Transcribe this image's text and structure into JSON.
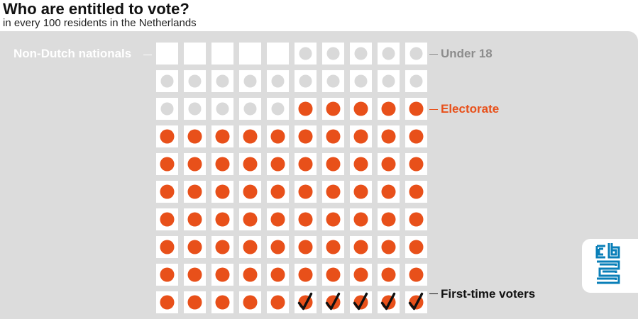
{
  "header": {
    "title": "Who are entitled to vote?",
    "subtitle": "in every 100 residents in the Netherlands"
  },
  "legend": {
    "non_dutch": "Non-Dutch nationals",
    "under_18": "Under 18",
    "electorate": "Electorate",
    "first_time": "First-time voters"
  },
  "colors": {
    "background_panel": "#dcdcdc",
    "cell": "#ffffff",
    "under_18_dot": "#d9d9d9",
    "electorate_dot": "#e8501a",
    "check": "#111111",
    "logo": "#0a7fb8"
  },
  "chart_data": {
    "type": "table",
    "grid": {
      "rows": 10,
      "cols": 10
    },
    "total": 100,
    "categories": [
      {
        "name": "Non-Dutch nationals",
        "count": 5
      },
      {
        "name": "Under 18",
        "count": 20
      },
      {
        "name": "Electorate",
        "count": 75
      },
      {
        "name": "First-time voters",
        "count": 5
      }
    ]
  },
  "logo": {
    "icon": "cbs-logo-icon"
  }
}
